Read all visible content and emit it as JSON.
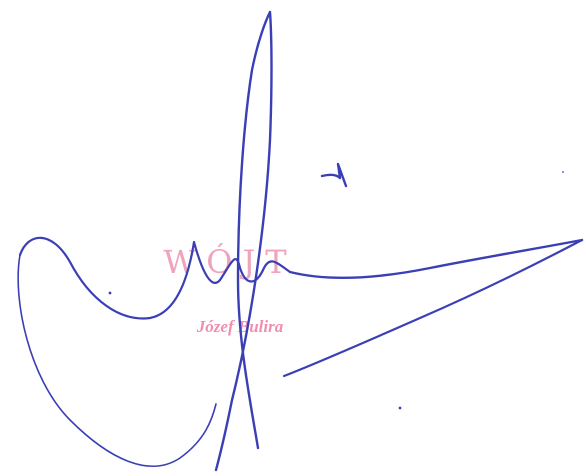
{
  "stamp": {
    "title": "WÓJT",
    "name": "Józef Bulira",
    "color": "#ef8fb0"
  },
  "signature": {
    "ink_color": "#3b3fb6",
    "icon": "handwritten-signature"
  }
}
